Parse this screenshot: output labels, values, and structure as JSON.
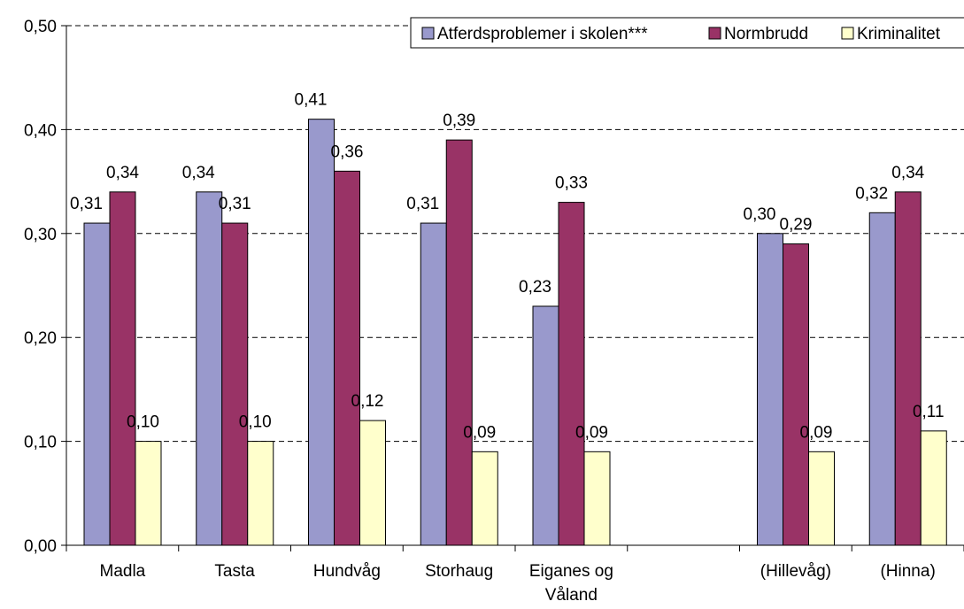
{
  "chart_data": {
    "type": "bar",
    "categories": [
      "Madla",
      "Tasta",
      "Hundvåg",
      "Storhaug",
      "Eiganes og Våland",
      "",
      "(Hillevåg)",
      "(Hinna)"
    ],
    "category_lines": [
      [
        "Madla"
      ],
      [
        "Tasta"
      ],
      [
        "Hundvåg"
      ],
      [
        "Storhaug"
      ],
      [
        "Eiganes og",
        "Våland"
      ],
      [],
      [
        "(Hillevåg)"
      ],
      [
        "(Hinna)"
      ]
    ],
    "series": [
      {
        "name": "Atferdsproblemer i skolen***",
        "color": "#9999cc",
        "values": [
          0.31,
          0.34,
          0.41,
          0.31,
          0.23,
          null,
          0.3,
          0.32
        ],
        "labels": [
          "0,31",
          "0,34",
          "0,41",
          "0,31",
          "0,23",
          "",
          "0,30",
          "0,32"
        ]
      },
      {
        "name": "Normbrudd",
        "color": "#993366",
        "values": [
          0.34,
          0.31,
          0.36,
          0.39,
          0.33,
          null,
          0.29,
          0.34
        ],
        "labels": [
          "0,34",
          "0,31",
          "0,36",
          "0,39",
          "0,33",
          "",
          "0,29",
          "0,34"
        ]
      },
      {
        "name": "Kriminalitet",
        "color": "#ffffcc",
        "values": [
          0.1,
          0.1,
          0.12,
          0.09,
          0.09,
          null,
          0.09,
          0.11
        ],
        "labels": [
          "0,10",
          "0,10",
          "0,12",
          "0,09",
          "0,09",
          "",
          "0,09",
          "0,11"
        ]
      }
    ],
    "yticks": [
      "0,00",
      "0,10",
      "0,20",
      "0,30",
      "0,40",
      "0,50"
    ],
    "ylim": [
      0,
      0.5
    ],
    "grid": "dashed horizontal",
    "legend_position": "top-right",
    "title": "",
    "xlabel": "",
    "ylabel": ""
  }
}
